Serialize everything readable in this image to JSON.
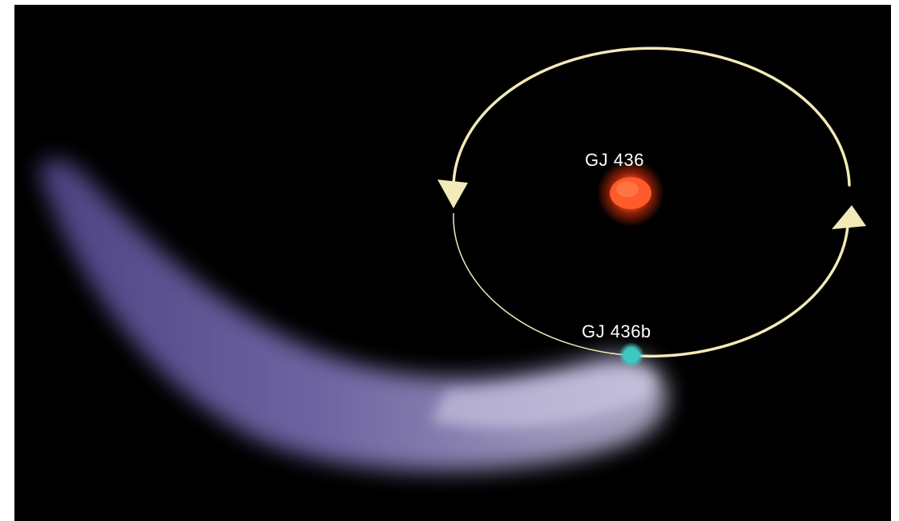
{
  "labels": {
    "star": "GJ 436",
    "planet": "GJ 436b"
  },
  "colors": {
    "background": "#000000",
    "orbit": "#f2eab8",
    "star_core": "#ff5a2a",
    "star_glow": "#ff3a10",
    "planet": "#3fc7c3",
    "tail_light": "#c9c3e2",
    "tail_dark": "#6e62b0"
  },
  "icons": {
    "orbit_arrow_left": "arrow-head-down-left-icon",
    "orbit_arrow_right": "arrow-head-up-right-icon"
  }
}
